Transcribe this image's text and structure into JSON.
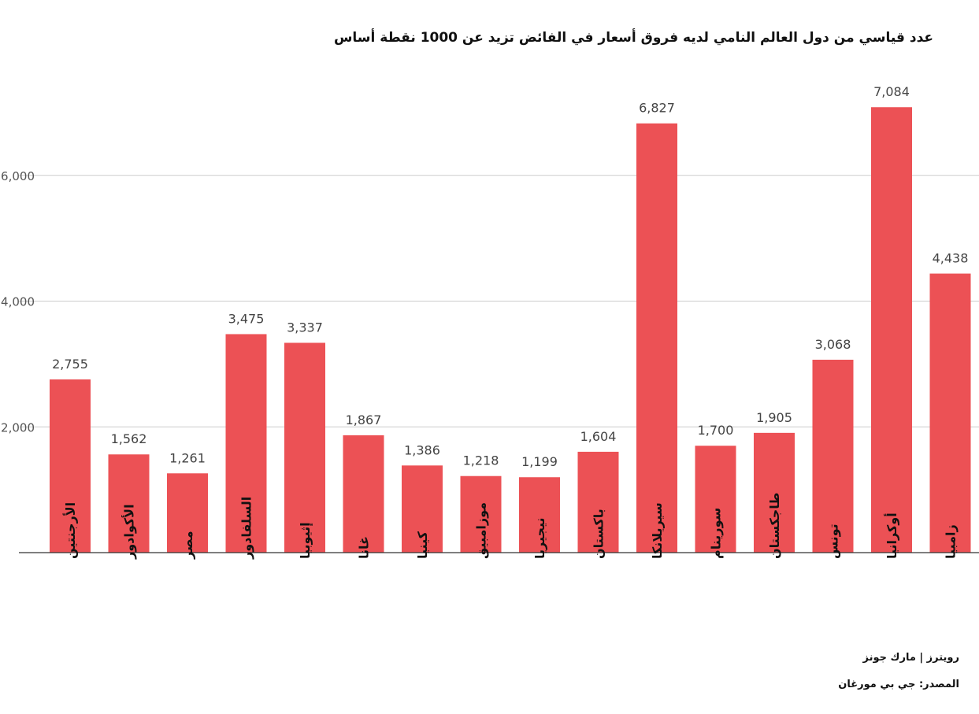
{
  "chart_data": {
    "type": "bar",
    "title": "عدد قياسي من دول العالم النامي لديه فروق أسعار في الفائض تزيد عن 1000 نقطة أساس",
    "xlabel": "",
    "ylabel": "",
    "categories": [
      "الأرجنتين",
      "الأكوادور",
      "مصر",
      "السلفادور",
      "إثيوبيا",
      "غانا",
      "كينيا",
      "موزامبيق",
      "نيجيريا",
      "باكستان",
      "سيريلانكا",
      "سورينام",
      "طاجكستان",
      "تونس",
      "أوكرانيا",
      "زامبيا"
    ],
    "values": [
      2755,
      1562,
      1261,
      3475,
      3337,
      1867,
      1386,
      1218,
      1199,
      1604,
      6827,
      1700,
      1905,
      3068,
      7084,
      4438
    ],
    "value_labels": [
      "2,755",
      "1,562",
      "1,261",
      "3,475",
      "3,337",
      "1,867",
      "1,386",
      "1,218",
      "1,199",
      "1,604",
      "6,827",
      "1,700",
      "1,905",
      "3,068",
      "7,084",
      "4,438"
    ],
    "ylim": [
      0,
      7600
    ],
    "yticks": [
      2000,
      4000,
      6000
    ],
    "ytick_labels": [
      "2,000",
      "4,000",
      "6,000"
    ],
    "grid": true,
    "legend": "none",
    "bar_color": "#ec5155"
  },
  "footer": {
    "credit": "رويترز | مارك جونز",
    "source": "المصدر: جي بي مورغان"
  }
}
